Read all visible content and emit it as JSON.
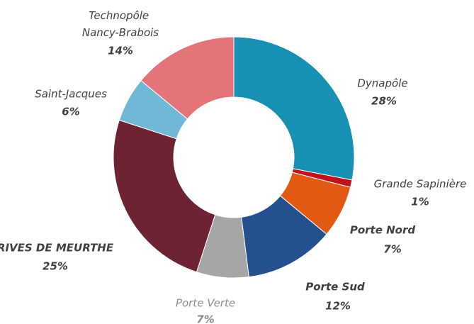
{
  "chart_data": {
    "type": "donut",
    "categories": [
      "Dynapôle",
      "Grande Sapinière",
      "Porte Nord",
      "Porte Sud",
      "Porte Verte",
      "RIVES DE MEURTHE",
      "Saint-Jacques",
      "Technopôle Nancy-Brabois"
    ],
    "values": [
      28,
      1,
      7,
      12,
      7,
      25,
      6,
      14
    ],
    "value_labels": [
      "28%",
      "1%",
      "7%",
      "12%",
      "7%",
      "25%",
      "6%",
      "14%"
    ],
    "colors": [
      "#1790b3",
      "#c0121c",
      "#e25a12",
      "#25508f",
      "#a6a6a6",
      "#6e2333",
      "#6fb8d6",
      "#e5737a"
    ]
  }
}
